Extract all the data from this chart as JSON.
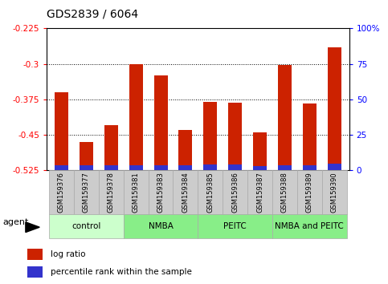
{
  "title": "GDS2839 / 6064",
  "samples": [
    "GSM159376",
    "GSM159377",
    "GSM159378",
    "GSM159381",
    "GSM159383",
    "GSM159384",
    "GSM159385",
    "GSM159386",
    "GSM159387",
    "GSM159388",
    "GSM159389",
    "GSM159390"
  ],
  "log_ratio": [
    -0.36,
    -0.465,
    -0.43,
    -0.3,
    -0.325,
    -0.44,
    -0.38,
    -0.382,
    -0.445,
    -0.302,
    -0.383,
    -0.265
  ],
  "percentile_rank_pct": [
    3.5,
    3.5,
    3.5,
    3.5,
    3.5,
    3.5,
    4.0,
    4.0,
    3.0,
    3.5,
    3.5,
    4.5
  ],
  "bar_bottom": -0.525,
  "bar_color_red": "#cc2200",
  "bar_color_blue": "#3333cc",
  "ylim_left": [
    -0.525,
    -0.225
  ],
  "ylim_right": [
    0,
    100
  ],
  "yticks_left": [
    -0.525,
    -0.45,
    -0.375,
    -0.3,
    -0.225
  ],
  "yticks_right": [
    0,
    25,
    50,
    75,
    100
  ],
  "group_labels": [
    "control",
    "NMBA",
    "PEITC",
    "NMBA and PEITC"
  ],
  "group_ranges": [
    [
      0,
      3
    ],
    [
      3,
      6
    ],
    [
      6,
      9
    ],
    [
      9,
      12
    ]
  ],
  "group_colors": [
    "#ccffcc",
    "#88ee88",
    "#88ee88",
    "#88ee88"
  ],
  "legend_red": "log ratio",
  "legend_blue": "percentile rank within the sample",
  "background_color": "#ffffff",
  "bar_width": 0.55,
  "dotted_lines": [
    -0.3,
    -0.375,
    -0.45
  ]
}
